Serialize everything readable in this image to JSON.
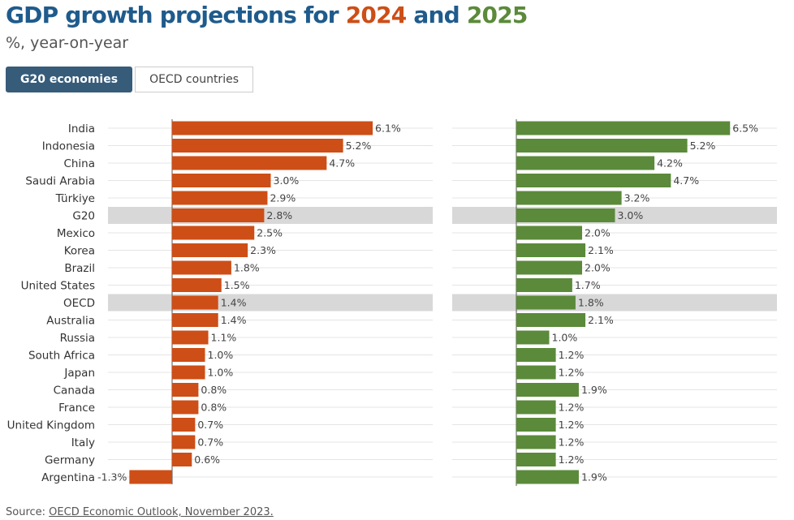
{
  "header": {
    "title_prefix": "GDP growth projections for ",
    "year1": "2024",
    "title_mid": " and ",
    "year2": "2025",
    "subtitle": "%, year-on-year"
  },
  "tabs": [
    {
      "label": "G20 economies",
      "active": true
    },
    {
      "label": "OECD countries",
      "active": false
    }
  ],
  "footer": {
    "source_prefix": "Source: ",
    "source_link": "OECD Economic Outlook, November 2023."
  },
  "colors": {
    "y2024": "#cd4e16",
    "y2025": "#5b8a3a",
    "highlight": "#d8d8d8"
  },
  "chart_data": {
    "type": "bar",
    "orientation": "horizontal",
    "categories": [
      "India",
      "Indonesia",
      "China",
      "Saudi Arabia",
      "Türkiye",
      "G20",
      "Mexico",
      "Korea",
      "Brazil",
      "United States",
      "OECD",
      "Australia",
      "Russia",
      "South Africa",
      "Japan",
      "Canada",
      "France",
      "United Kingdom",
      "Italy",
      "Germany",
      "Argentina"
    ],
    "highlighted": [
      "G20",
      "OECD"
    ],
    "series": [
      {
        "name": "2024",
        "values": [
          6.1,
          5.2,
          4.7,
          3.0,
          2.9,
          2.8,
          2.5,
          2.3,
          1.8,
          1.5,
          1.4,
          1.4,
          1.1,
          1.0,
          1.0,
          0.8,
          0.8,
          0.7,
          0.7,
          0.6,
          -1.3
        ]
      },
      {
        "name": "2025",
        "values": [
          6.5,
          5.2,
          4.2,
          4.7,
          3.2,
          3.0,
          2.0,
          2.1,
          2.0,
          1.7,
          1.8,
          2.1,
          1.0,
          1.2,
          1.2,
          1.9,
          1.2,
          1.2,
          1.2,
          1.2,
          1.9
        ]
      }
    ],
    "value_labels": {
      "2024": [
        "6.1%",
        "5.2%",
        "4.7%",
        "3.0%",
        "2.9%",
        "2.8%",
        "2.5%",
        "2.3%",
        "1.8%",
        "1.5%",
        "1.4%",
        "1.4%",
        "1.1%",
        "1.0%",
        "1.0%",
        "0.8%",
        "0.8%",
        "0.7%",
        "0.7%",
        "0.6%",
        "-1.3%"
      ],
      "2025": [
        "6.5%",
        "5.2%",
        "4.2%",
        "4.7%",
        "3.2%",
        "3.0%",
        "2.0%",
        "2.1%",
        "2.0%",
        "1.7%",
        "1.8%",
        "2.1%",
        "1.0%",
        "1.2%",
        "1.2%",
        "1.9%",
        "1.2%",
        "1.2%",
        "1.2%",
        "1.2%",
        "1.9%"
      ]
    },
    "grid": true,
    "legend": "none"
  }
}
